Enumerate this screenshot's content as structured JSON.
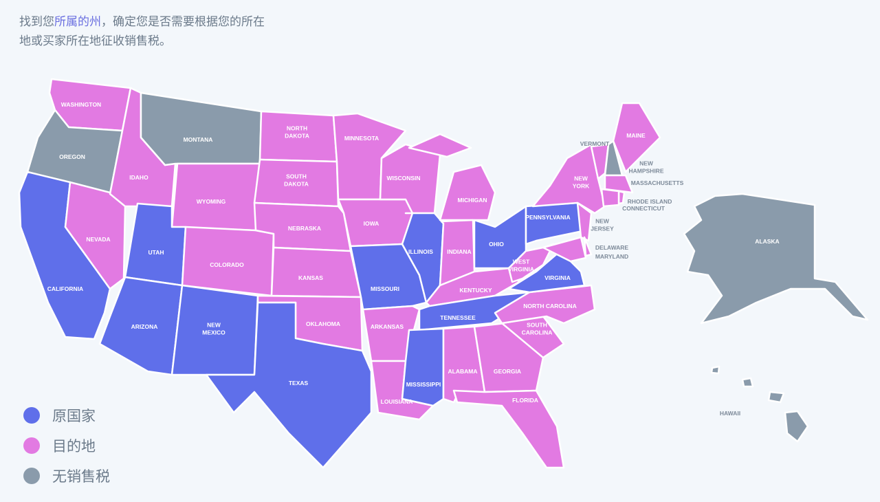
{
  "intro": {
    "part1": "找到您",
    "highlight": "所属的州",
    "part2": "，确定您是否需要根据您的所在地或买家所在地征收销售税。"
  },
  "colors": {
    "origin": "#5f6fea",
    "destination": "#e27ae2",
    "none": "#8a9bab",
    "background": "#f3f7fb",
    "border": "#ffffff",
    "outside_label": "#7d8a99"
  },
  "legend": [
    {
      "key": "origin",
      "label": "原国家"
    },
    {
      "key": "destination",
      "label": "目的地"
    },
    {
      "key": "none",
      "label": "无销售税"
    }
  ],
  "states": [
    {
      "id": "WA",
      "label": [
        "WASHINGTON"
      ],
      "category": "destination"
    },
    {
      "id": "OR",
      "label": [
        "OREGON"
      ],
      "category": "none"
    },
    {
      "id": "CA",
      "label": [
        "CALIFORNIA"
      ],
      "category": "origin"
    },
    {
      "id": "NV",
      "label": [
        "NEVADA"
      ],
      "category": "destination"
    },
    {
      "id": "ID",
      "label": [
        "IDAHO"
      ],
      "category": "destination"
    },
    {
      "id": "MT",
      "label": [
        "MONTANA"
      ],
      "category": "none"
    },
    {
      "id": "WY",
      "label": [
        "WYOMING"
      ],
      "category": "destination"
    },
    {
      "id": "UT",
      "label": [
        "UTAH"
      ],
      "category": "origin"
    },
    {
      "id": "CO",
      "label": [
        "COLORADO"
      ],
      "category": "destination"
    },
    {
      "id": "AZ",
      "label": [
        "ARIZONA"
      ],
      "category": "origin"
    },
    {
      "id": "NM",
      "label": [
        "NEW",
        "MEXICO"
      ],
      "category": "origin"
    },
    {
      "id": "ND",
      "label": [
        "NORTH",
        "DAKOTA"
      ],
      "category": "destination"
    },
    {
      "id": "SD",
      "label": [
        "SOUTH",
        "DAKOTA"
      ],
      "category": "destination"
    },
    {
      "id": "NE",
      "label": [
        "NEBRASKA"
      ],
      "category": "destination"
    },
    {
      "id": "KS",
      "label": [
        "KANSAS"
      ],
      "category": "destination"
    },
    {
      "id": "OK",
      "label": [
        "OKLAHOMA"
      ],
      "category": "destination"
    },
    {
      "id": "TX",
      "label": [
        "TEXAS"
      ],
      "category": "origin"
    },
    {
      "id": "MN",
      "label": [
        "MINNESOTA"
      ],
      "category": "destination"
    },
    {
      "id": "IA",
      "label": [
        "IOWA"
      ],
      "category": "destination"
    },
    {
      "id": "MO",
      "label": [
        "MISSOURI"
      ],
      "category": "origin"
    },
    {
      "id": "AR",
      "label": [
        "ARKANSAS"
      ],
      "category": "destination"
    },
    {
      "id": "LA",
      "label": [
        "LOUISIANA"
      ],
      "category": "destination"
    },
    {
      "id": "WI",
      "label": [
        "WISCONSIN"
      ],
      "category": "destination"
    },
    {
      "id": "IL",
      "label": [
        "ILLINOIS"
      ],
      "category": "origin"
    },
    {
      "id": "MI",
      "label": [
        "MICHIGAN"
      ],
      "category": "destination"
    },
    {
      "id": "IN",
      "label": [
        "INDIANA"
      ],
      "category": "destination"
    },
    {
      "id": "OH",
      "label": [
        "OHIO"
      ],
      "category": "origin"
    },
    {
      "id": "KY",
      "label": [
        "KENTUCKY"
      ],
      "category": "destination"
    },
    {
      "id": "TN",
      "label": [
        "TENNESSEE"
      ],
      "category": "origin"
    },
    {
      "id": "MS",
      "label": [
        "MISSISSIPPI"
      ],
      "category": "origin"
    },
    {
      "id": "AL",
      "label": [
        "ALABAMA"
      ],
      "category": "destination"
    },
    {
      "id": "GA",
      "label": [
        "GEORGIA"
      ],
      "category": "destination"
    },
    {
      "id": "FL",
      "label": [
        "FLORIDA"
      ],
      "category": "destination"
    },
    {
      "id": "SC",
      "label": [
        "SOUTH",
        "CAROLINA"
      ],
      "category": "destination"
    },
    {
      "id": "NC",
      "label": [
        "NORTH CAROLINA"
      ],
      "category": "destination"
    },
    {
      "id": "VA",
      "label": [
        "VIRGINIA"
      ],
      "category": "origin"
    },
    {
      "id": "WV",
      "label": [
        "WEST",
        "VIRGINIA"
      ],
      "category": "destination"
    },
    {
      "id": "PA",
      "label": [
        "PENNSYLVANIA"
      ],
      "category": "origin"
    },
    {
      "id": "NY",
      "label": [
        "NEW",
        "YORK"
      ],
      "category": "destination"
    },
    {
      "id": "VT",
      "label": [
        "VERMONT"
      ],
      "category": "destination"
    },
    {
      "id": "NH",
      "label": [
        "NEW",
        "HAMPSHIRE"
      ],
      "category": "none"
    },
    {
      "id": "ME",
      "label": [
        "MAINE"
      ],
      "category": "destination"
    },
    {
      "id": "MA",
      "label": [
        "MASSACHUSETTS"
      ],
      "category": "destination"
    },
    {
      "id": "RI",
      "label": [
        "RHODE ISLAND"
      ],
      "category": "destination"
    },
    {
      "id": "CT",
      "label": [
        "CONNECTICUT"
      ],
      "category": "destination"
    },
    {
      "id": "NJ",
      "label": [
        "NEW",
        "JERSEY"
      ],
      "category": "destination"
    },
    {
      "id": "DE",
      "label": [
        "DELAWARE"
      ],
      "category": "destination"
    },
    {
      "id": "MD",
      "label": [
        "MARYLAND"
      ],
      "category": "destination"
    },
    {
      "id": "AK",
      "label": [
        "ALASKA"
      ],
      "category": "none"
    },
    {
      "id": "HI",
      "label": [
        "HAWAII"
      ],
      "category": "none"
    }
  ]
}
